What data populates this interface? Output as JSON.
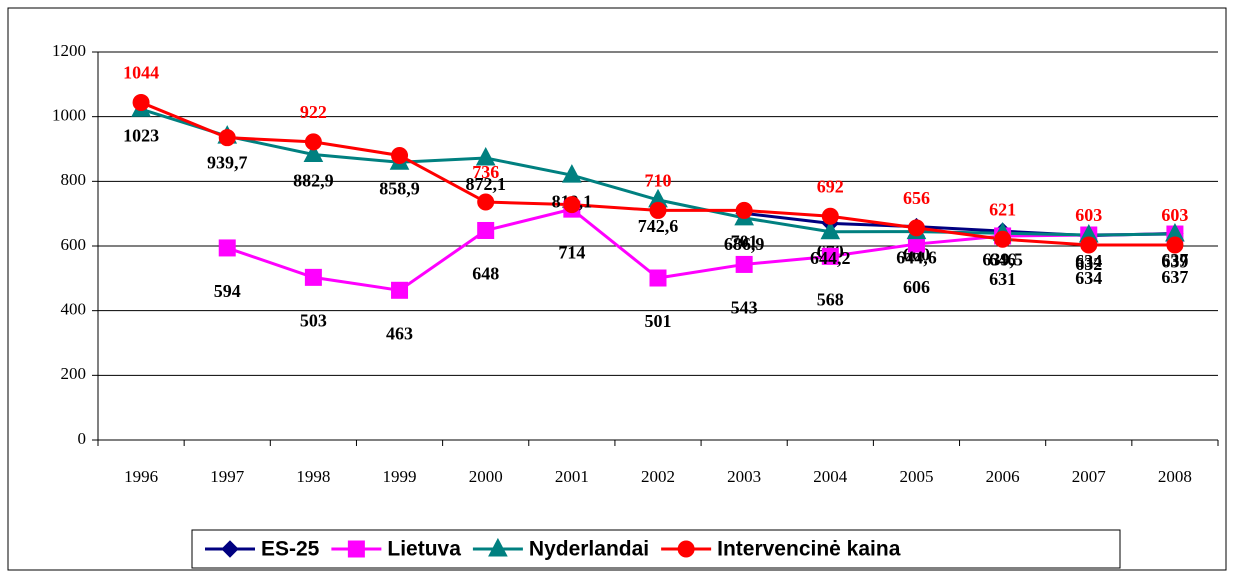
{
  "chart_data": {
    "type": "line",
    "categories": [
      "1996",
      "1997",
      "1998",
      "1999",
      "2000",
      "2001",
      "2002",
      "2003",
      "2004",
      "2005",
      "2006",
      "2007",
      "2008"
    ],
    "ylim": [
      0,
      1200
    ],
    "yticks": [
      0,
      200,
      400,
      600,
      800,
      1000,
      1200
    ],
    "grid": true,
    "legend": "bottom",
    "series": [
      {
        "name": "ES-25",
        "color": "#000080",
        "marker": "diamond",
        "label_color": "#000000",
        "values": [
          null,
          null,
          null,
          null,
          null,
          null,
          null,
          701,
          670,
          660,
          646,
          632,
          639
        ]
      },
      {
        "name": "Lietuva",
        "color": "#ff00ff",
        "marker": "square",
        "label_color": "#000000",
        "values": [
          null,
          594,
          503,
          463,
          648,
          714,
          501,
          543,
          568,
          606,
          631,
          634,
          637
        ]
      },
      {
        "name": "Nyderlandai",
        "color": "#008080",
        "marker": "triangle",
        "label_color": "#000000",
        "values": [
          1023,
          939.7,
          882.9,
          858.9,
          872.1,
          819.1,
          742.6,
          686.9,
          644.2,
          644.6,
          639.5,
          634,
          637
        ],
        "value_labels": [
          "1023",
          "939,7",
          "882,9",
          "858,9",
          "872,1",
          "819,1",
          "742,6",
          "686,9",
          "644,2",
          "644,6",
          "639,5",
          "634",
          "637"
        ]
      },
      {
        "name": "Intervencinė kaina",
        "color": "#ff0000",
        "marker": "circle",
        "label_color": "#ff0000",
        "values": [
          1044,
          935,
          922,
          880,
          736,
          728,
          710,
          710,
          692,
          656,
          621,
          603,
          603
        ],
        "value_labels": [
          "1044",
          null,
          "922",
          null,
          "736",
          null,
          "710",
          null,
          "692",
          "656",
          "621",
          "603",
          "603"
        ]
      }
    ]
  }
}
